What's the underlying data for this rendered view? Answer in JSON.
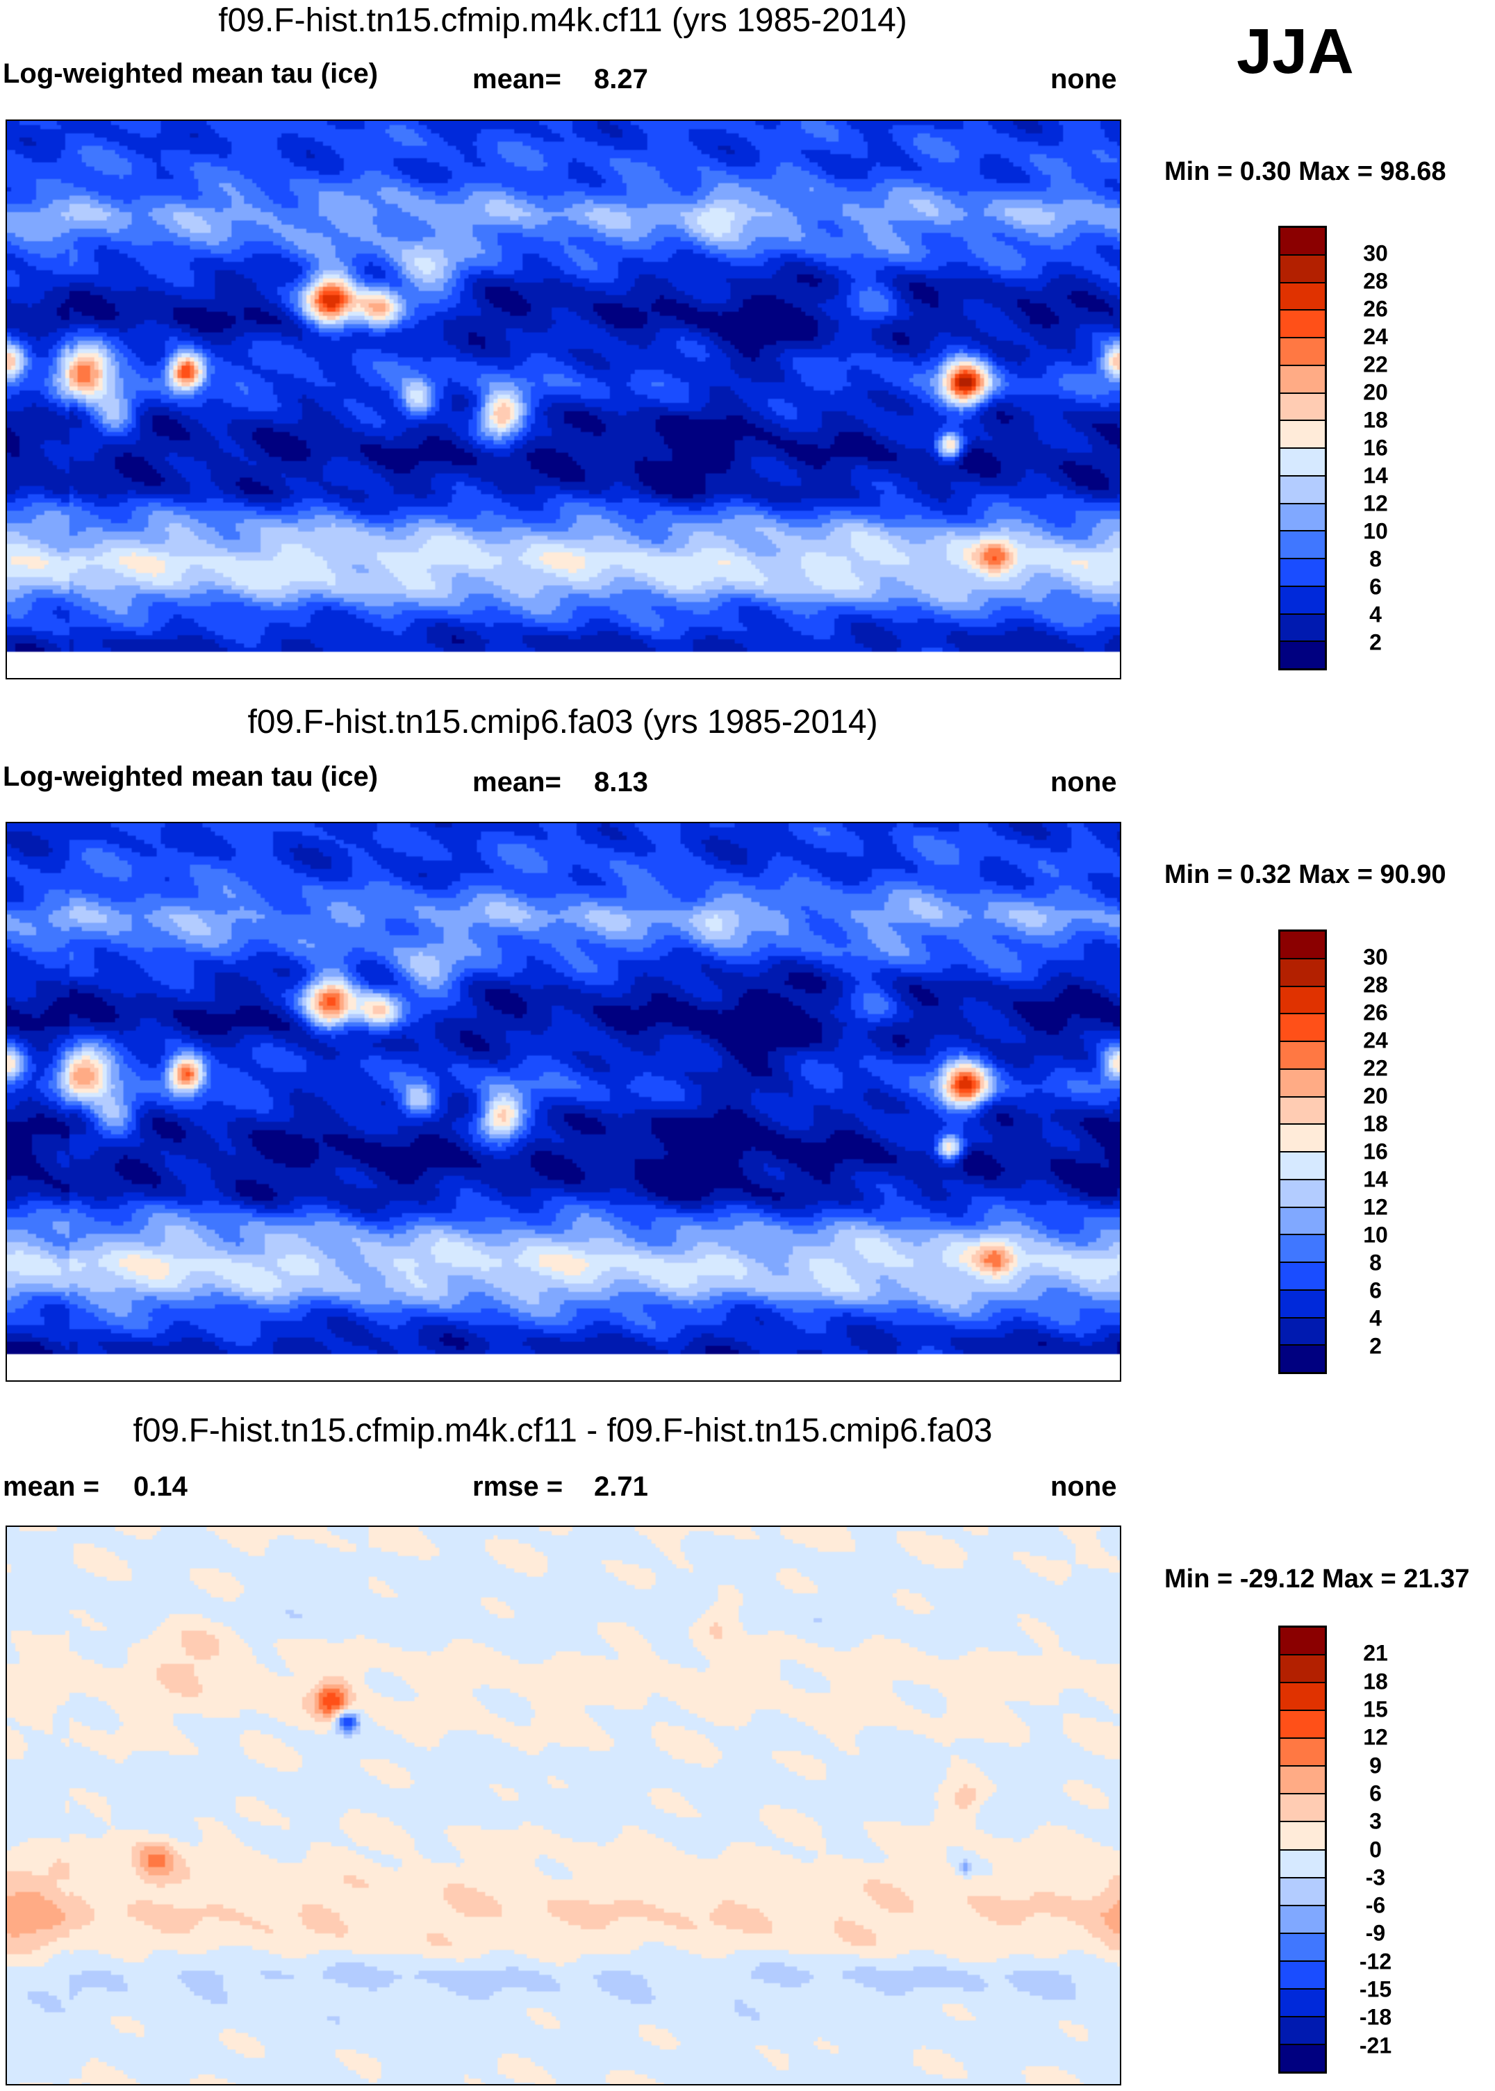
{
  "season": "JJA",
  "colors": [
    "#000080",
    "#001ab0",
    "#0029da",
    "#1a4dff",
    "#4077ff",
    "#80a8ff",
    "#b3ccff",
    "#d6e9ff",
    "#ffebd9",
    "#ffccb3",
    "#ffab85",
    "#ff7843",
    "#ff5018",
    "#e03200",
    "#b32000",
    "#8b0000"
  ],
  "panels": [
    {
      "title": "f09.F-hist.tn15.cfmip.m4k.cf11 (yrs 1985-2014)",
      "left_label": "Log-weighted mean tau (ice)",
      "mean_label": "mean=",
      "mean_value": "8.27",
      "units": "none",
      "minmax": "Min =   0.30 Max =  98.68",
      "ticks": [
        "30",
        "28",
        "26",
        "24",
        "22",
        "20",
        "18",
        "16",
        "14",
        "12",
        "10",
        "8",
        "6",
        "4",
        "2"
      ]
    },
    {
      "title": "f09.F-hist.tn15.cmip6.fa03 (yrs 1985-2014)",
      "left_label": "Log-weighted mean tau (ice)",
      "mean_label": "mean=",
      "mean_value": "8.13",
      "units": "none",
      "minmax": "Min =   0.32 Max =  90.90",
      "ticks": [
        "30",
        "28",
        "26",
        "24",
        "22",
        "20",
        "18",
        "16",
        "14",
        "12",
        "10",
        "8",
        "6",
        "4",
        "2"
      ]
    },
    {
      "title": "f09.F-hist.tn15.cfmip.m4k.cf11 - f09.F-hist.tn15.cmip6.fa03",
      "left_label": "mean =",
      "left_value": "0.14",
      "mean_label": "rmse =",
      "mean_value": "2.71",
      "units": "none",
      "minmax": "Min = -29.12 Max =  21.37",
      "ticks": [
        "21",
        "18",
        "15",
        "12",
        "9",
        "6",
        "3",
        "0",
        "-3",
        "-6",
        "-9",
        "-12",
        "-15",
        "-18",
        "-21"
      ]
    }
  ],
  "chart_data": [
    {
      "type": "heatmap",
      "title": "f09.F-hist.tn15.cfmip.m4k.cf11 (yrs 1985-2014)",
      "variable": "Log-weighted mean tau (ice)",
      "mean": 8.27,
      "min": 0.3,
      "max": 98.68,
      "units": "none",
      "levels": [
        2,
        4,
        6,
        8,
        10,
        12,
        14,
        16,
        18,
        20,
        22,
        24,
        26,
        28,
        30
      ]
    },
    {
      "type": "heatmap",
      "title": "f09.F-hist.tn15.cmip6.fa03 (yrs 1985-2014)",
      "variable": "Log-weighted mean tau (ice)",
      "mean": 8.13,
      "min": 0.32,
      "max": 90.9,
      "units": "none",
      "levels": [
        2,
        4,
        6,
        8,
        10,
        12,
        14,
        16,
        18,
        20,
        22,
        24,
        26,
        28,
        30
      ]
    },
    {
      "type": "heatmap",
      "title": "f09.F-hist.tn15.cfmip.m4k.cf11 - f09.F-hist.tn15.cmip6.fa03",
      "mean": 0.14,
      "rmse": 2.71,
      "min": -29.12,
      "max": 21.37,
      "units": "none",
      "levels": [
        -21,
        -18,
        -15,
        -12,
        -9,
        -6,
        -3,
        0,
        3,
        6,
        9,
        12,
        15,
        18,
        21
      ]
    }
  ]
}
